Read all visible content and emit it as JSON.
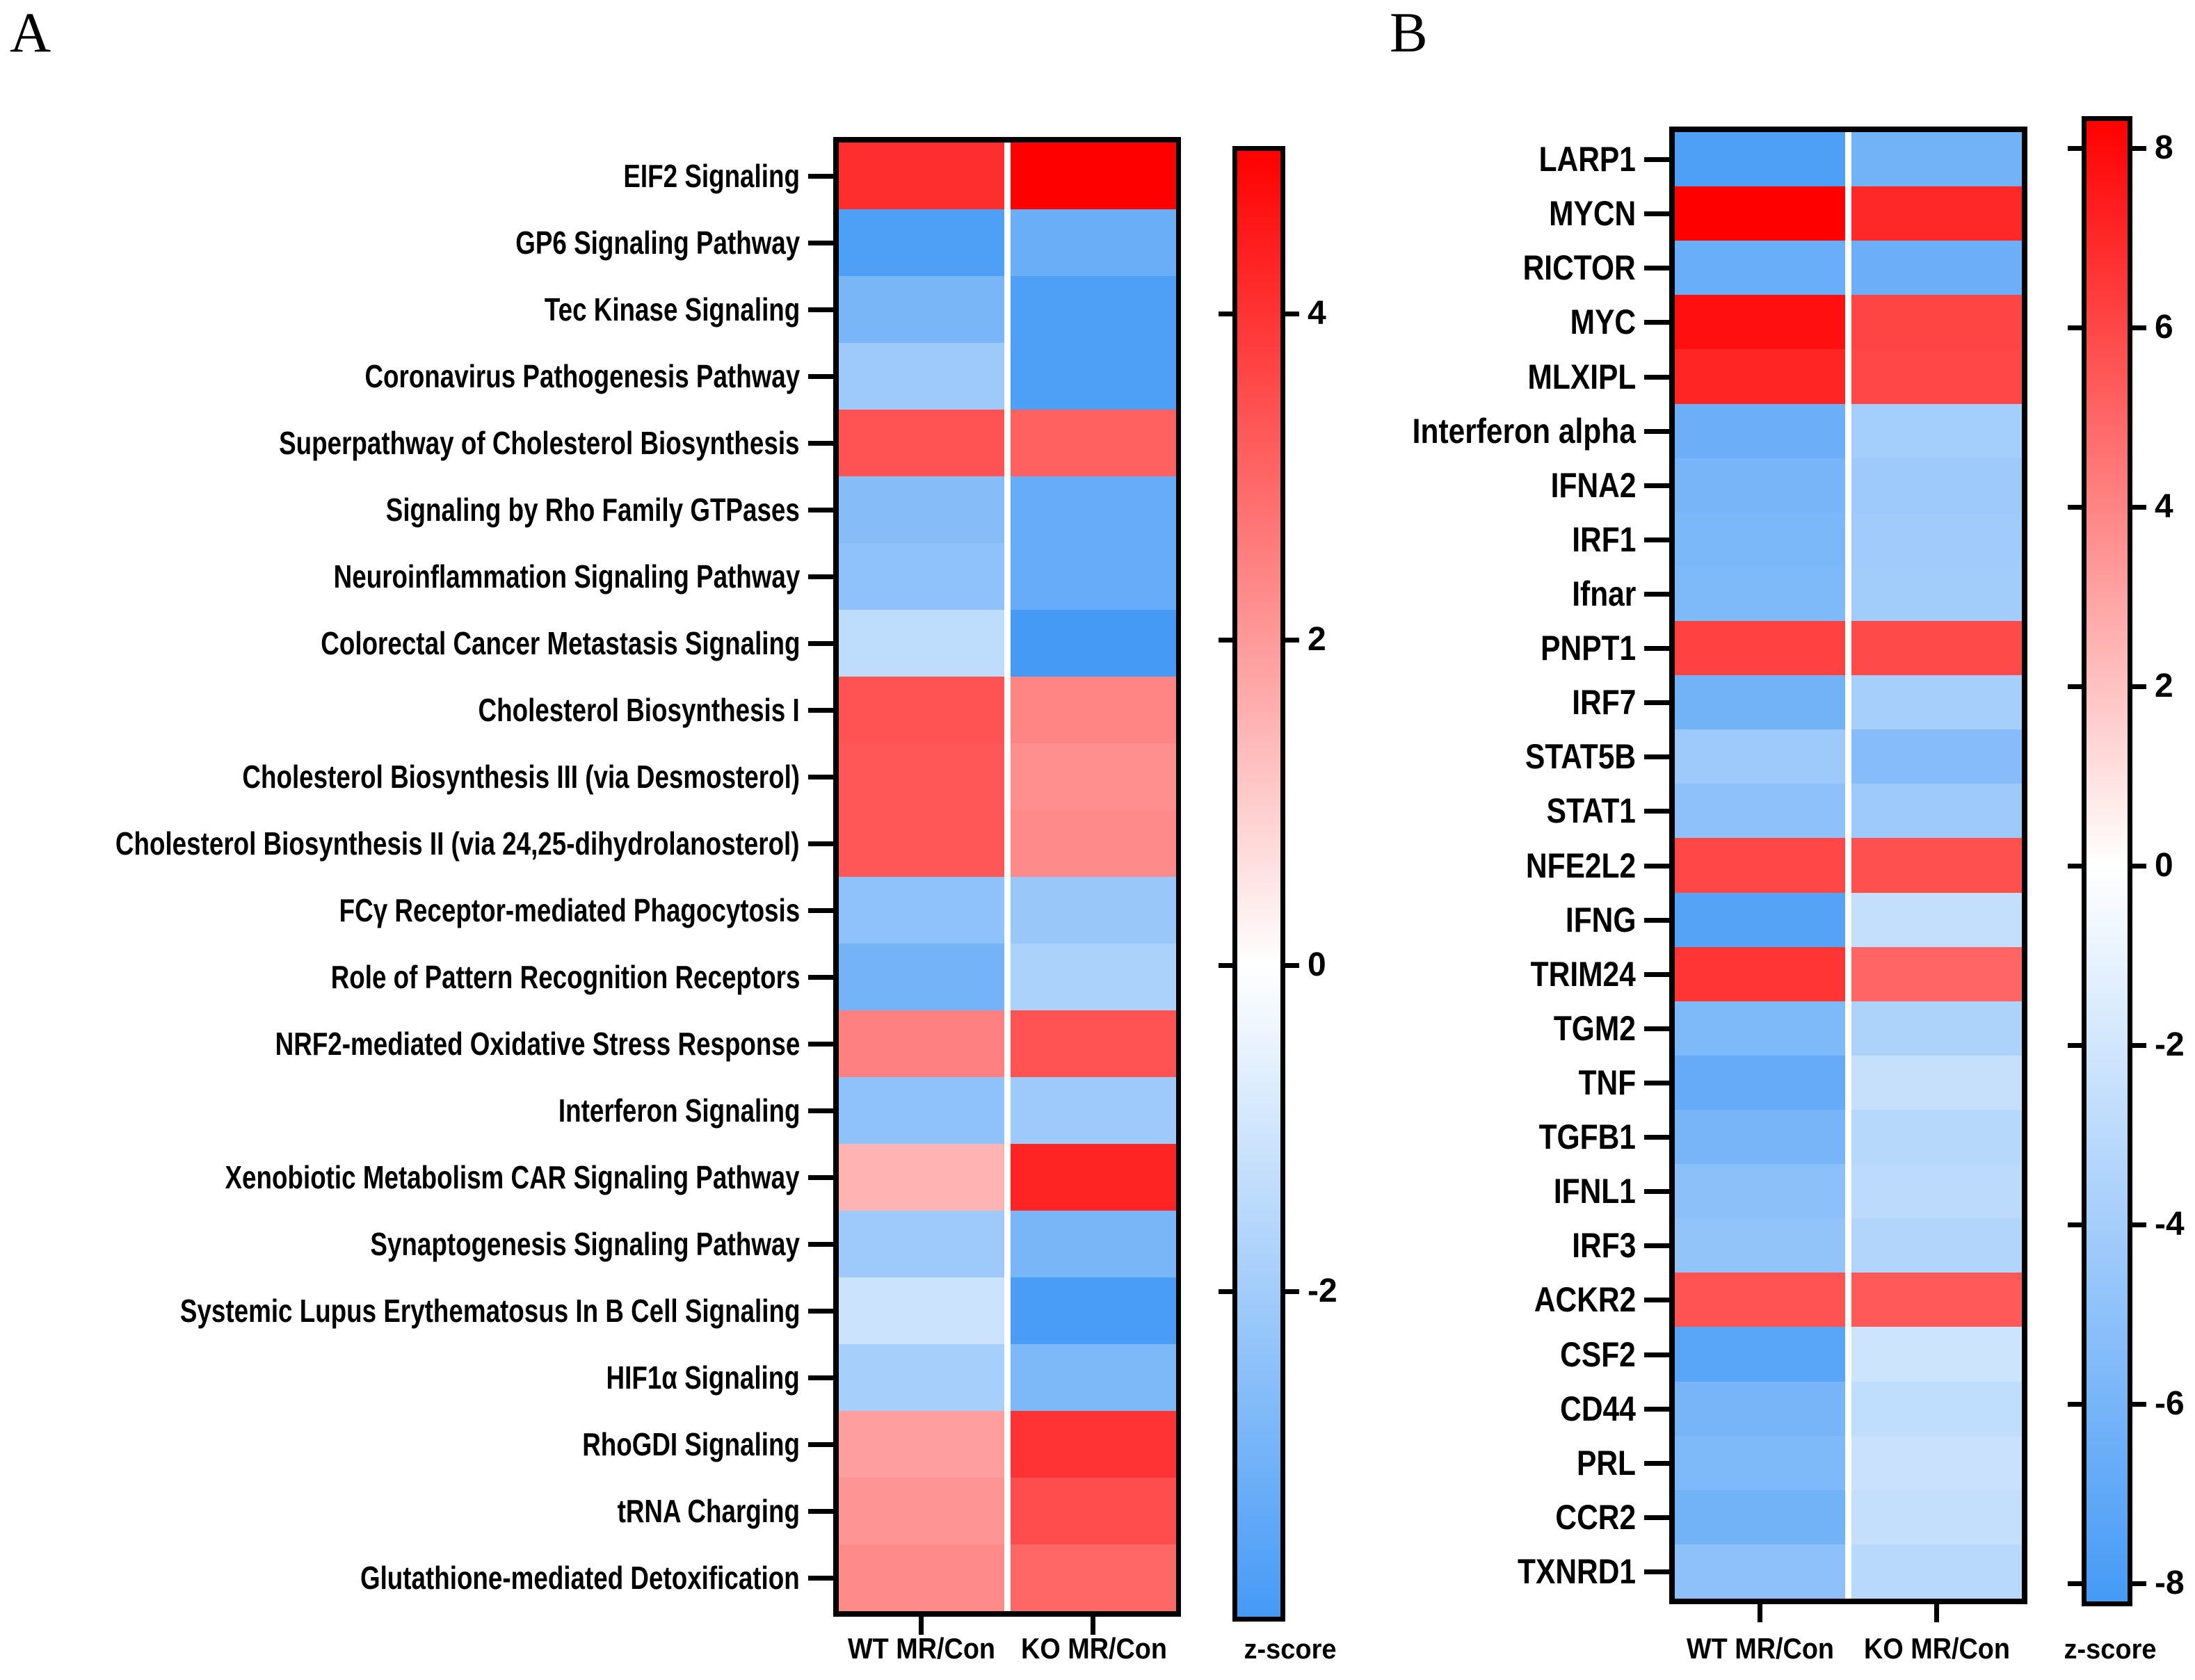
{
  "chart_data": [
    {
      "type": "heatmap",
      "panel": "A",
      "title": "",
      "xlabel": "",
      "ylabel": "",
      "grid": false,
      "legend_position": "right-colorbar",
      "categories": [
        "EIF2 Signaling",
        "GP6 Signaling Pathway",
        "Tec Kinase Signaling",
        "Coronavirus Pathogenesis Pathway",
        "Superpathway of Cholesterol Biosynthesis",
        "Signaling by Rho Family GTPases",
        "Neuroinflammation Signaling Pathway",
        "Colorectal Cancer Metastasis Signaling",
        "Cholesterol Biosynthesis I",
        "Cholesterol Biosynthesis III (via Desmosterol)",
        "Cholesterol Biosynthesis II (via 24,25-dihydrolanosterol)",
        "FCγ Receptor-mediated Phagocytosis",
        "Role of Pattern Recognition Receptors",
        "NRF2-mediated Oxidative Stress Response",
        "Interferon Signaling",
        "Xenobiotic Metabolism CAR Signaling Pathway",
        "Synaptogenesis Signaling Pathway",
        "Systemic Lupus Erythematosus In B Cell Signaling",
        "HIF1α Signaling",
        "RhoGDI Signaling",
        "tRNA Charging",
        "Glutathione-mediated Detoxification"
      ],
      "series": [
        {
          "name": "WT MR/Con",
          "values": [
            4.1,
            -3.8,
            -2.9,
            -2.1,
            3.4,
            -2.6,
            -2.4,
            -1.4,
            3.4,
            3.3,
            3.3,
            -2.4,
            -3.0,
            2.5,
            -2.4,
            1.5,
            -2.1,
            -1.1,
            -1.9,
            1.9,
            2.1,
            2.3
          ]
        },
        {
          "name": "KO MR/Con",
          "values": [
            5.0,
            -3.2,
            -3.8,
            -3.8,
            3.1,
            -3.3,
            -3.3,
            -4.0,
            2.4,
            2.2,
            2.3,
            -2.2,
            -1.8,
            3.4,
            -2.1,
            4.3,
            -2.9,
            -3.9,
            -2.8,
            4.0,
            3.5,
            3.0
          ]
        }
      ],
      "colorbar": {
        "label": "z-score",
        "ticks": [
          4,
          2,
          0,
          -2
        ],
        "domain": [
          5.0,
          -4.0
        ],
        "colors": {
          "max": "#FF0000",
          "mid": "#FFFFFF",
          "min": "#459AF6"
        }
      }
    },
    {
      "type": "heatmap",
      "panel": "B",
      "title": "",
      "xlabel": "",
      "ylabel": "",
      "grid": false,
      "legend_position": "right-colorbar",
      "categories": [
        "LARP1",
        "MYCN",
        "RICTOR",
        "MYC",
        "MLXIPL",
        "Interferon alpha",
        "IFNA2",
        "IRF1",
        "Ifnar",
        "PNPT1",
        "IRF7",
        "STAT5B",
        "STAT1",
        "NFE2L2",
        "IFNG",
        "TRIM24",
        "TGM2",
        "TNF",
        "TGFB1",
        "IFNL1",
        "IRF3",
        "ACKR2",
        "CSF2",
        "CD44",
        "PRL",
        "CCR2",
        "TXNRD1"
      ],
      "series": [
        {
          "name": "WT MR/Con",
          "values": [
            -7.8,
            8.3,
            -6.6,
            7.8,
            7.1,
            -6.5,
            -6.0,
            -5.8,
            -5.7,
            6.2,
            -6.2,
            -4.3,
            -5.0,
            6.0,
            -7.5,
            6.6,
            -5.7,
            -6.8,
            -6.0,
            -5.1,
            -4.8,
            5.6,
            -7.3,
            -6.0,
            -5.7,
            -6.2,
            -5.0
          ]
        },
        {
          "name": "KO MR/Con",
          "values": [
            -6.2,
            7.0,
            -6.5,
            6.1,
            6.0,
            -4.0,
            -4.3,
            -4.2,
            -4.1,
            5.9,
            -3.9,
            -5.4,
            -4.3,
            5.7,
            -2.6,
            5.0,
            -3.6,
            -2.5,
            -3.2,
            -3.0,
            -3.4,
            5.4,
            -2.2,
            -2.8,
            -2.4,
            -2.6,
            -3.1
          ]
        }
      ],
      "colorbar": {
        "label": "z-score",
        "ticks": [
          8,
          6,
          4,
          2,
          0,
          -2,
          -4,
          -6,
          -8
        ],
        "domain": [
          8.3,
          -8.2
        ],
        "colors": {
          "max": "#FF0000",
          "mid": "#FFFFFF",
          "min": "#459AF6"
        }
      }
    }
  ]
}
